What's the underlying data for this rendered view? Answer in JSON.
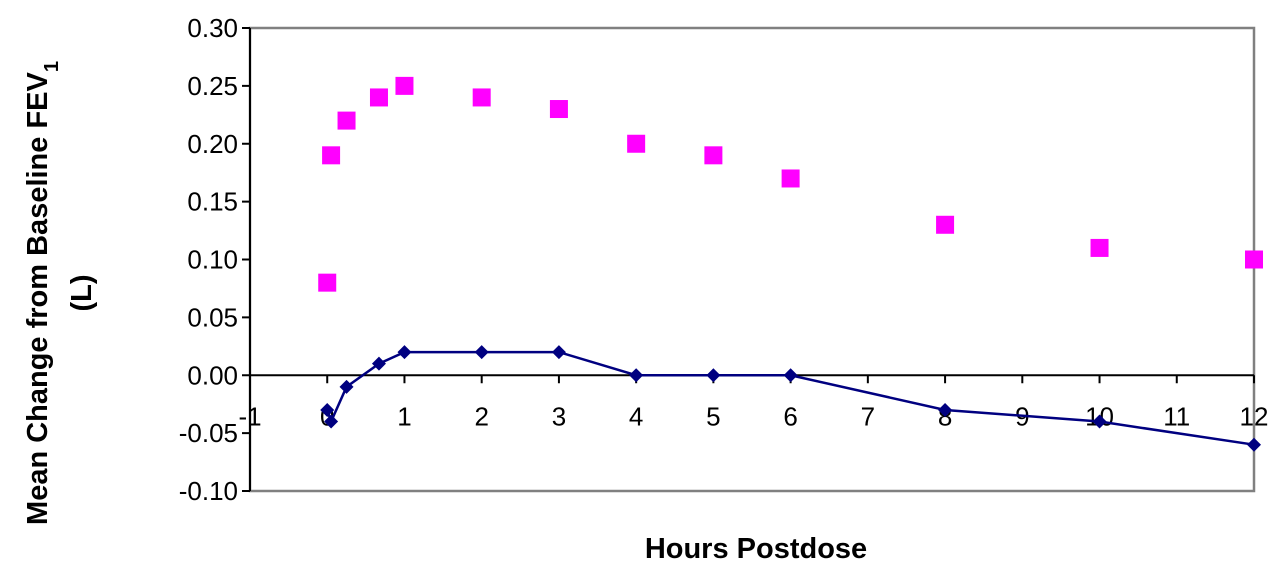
{
  "chart_data": {
    "type": "scatter",
    "title": "",
    "xlabel": "Hours Postdose",
    "ylabel_line1_prefix": "Mean Change from Baseline FEV",
    "ylabel_line1_subscript": "1",
    "ylabel_line2": "(L)",
    "xlim": [
      -1,
      12
    ],
    "ylim": [
      -0.1,
      0.3
    ],
    "x_ticks": [
      {
        "value": -1,
        "label": "-1"
      },
      {
        "value": 0,
        "label": "0"
      },
      {
        "value": 1,
        "label": "1"
      },
      {
        "value": 2,
        "label": "2"
      },
      {
        "value": 3,
        "label": "3"
      },
      {
        "value": 4,
        "label": "4"
      },
      {
        "value": 5,
        "label": "5"
      },
      {
        "value": 6,
        "label": "6"
      },
      {
        "value": 7,
        "label": "7"
      },
      {
        "value": 8,
        "label": "8"
      },
      {
        "value": 9,
        "label": "9"
      },
      {
        "value": 10,
        "label": "10"
      },
      {
        "value": 11,
        "label": "11"
      },
      {
        "value": 12,
        "label": "12"
      }
    ],
    "y_ticks": [
      {
        "value": 0.3,
        "label": "0.30"
      },
      {
        "value": 0.25,
        "label": "0.25"
      },
      {
        "value": 0.2,
        "label": "0.20"
      },
      {
        "value": 0.15,
        "label": "0.15"
      },
      {
        "value": 0.1,
        "label": "0.10"
      },
      {
        "value": 0.05,
        "label": "0.05"
      },
      {
        "value": 0.0,
        "label": "0.00"
      },
      {
        "value": -0.05,
        "label": "-0.05"
      },
      {
        "value": -0.1,
        "label": "-0.10"
      }
    ],
    "grid": false,
    "series": [
      {
        "marker": "square",
        "line": false,
        "color": "#ff00ff",
        "x": [
          0.0,
          0.05,
          0.25,
          0.67,
          1,
          2,
          3,
          4,
          5,
          6,
          8,
          10,
          12
        ],
        "y": [
          0.08,
          0.19,
          0.22,
          0.24,
          0.25,
          0.24,
          0.23,
          0.2,
          0.19,
          0.17,
          0.13,
          0.11,
          0.1
        ]
      },
      {
        "marker": "diamond",
        "line": true,
        "color": "#000080",
        "x": [
          0.0,
          0.05,
          0.25,
          0.67,
          1,
          2,
          3,
          4,
          5,
          6,
          8,
          10,
          12
        ],
        "y": [
          -0.03,
          -0.04,
          -0.01,
          0.01,
          0.02,
          0.02,
          0.02,
          0.0,
          0.0,
          0.0,
          -0.03,
          -0.04,
          -0.06
        ]
      }
    ]
  }
}
